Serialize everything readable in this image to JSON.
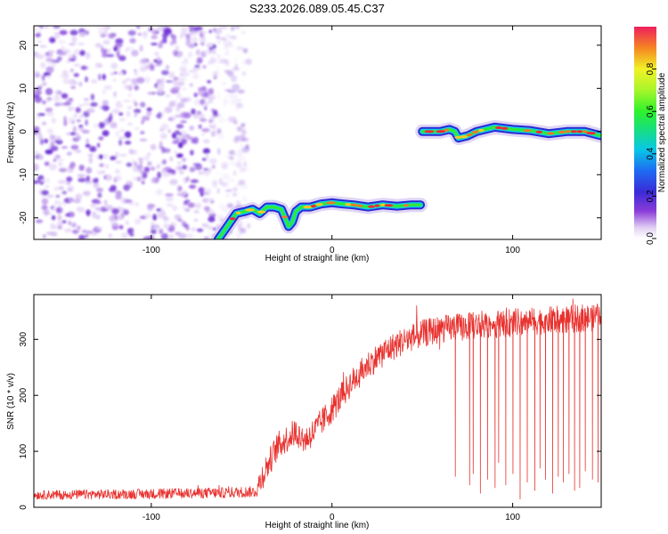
{
  "figure_title": "S233.2026.089.05.45.C37",
  "colors": {
    "axis": "#000000",
    "snr_line": "#e8322f",
    "noise": "#7a3fd9",
    "background": "#ffffff"
  },
  "chart_data": [
    {
      "type": "heatmap",
      "name": "spectrogram",
      "xlabel": "Height of straight line (km)",
      "ylabel": "Frequency (Hz)",
      "xlim": [
        -165,
        149
      ],
      "ylim": [
        -25,
        24.5
      ],
      "xticks": [
        -100,
        0,
        100
      ],
      "yticks": [
        -20,
        -10,
        0,
        10,
        20
      ],
      "noise_region_x": [
        -165,
        -52
      ],
      "ridge": {
        "x": [
          -63,
          -58,
          -53,
          -48,
          -44,
          -40,
          -36,
          -32,
          -28,
          -26,
          -24,
          -22,
          -20,
          -17,
          -12,
          -6,
          0,
          6,
          12,
          20,
          28,
          36,
          44,
          49,
          50,
          55,
          60,
          65,
          68,
          70,
          75,
          80,
          90,
          100,
          110,
          120,
          130,
          140,
          149
        ],
        "y": [
          -25,
          -22,
          -19,
          -18.5,
          -18,
          -19,
          -17.5,
          -17.5,
          -18,
          -20,
          -22,
          -21,
          -18.5,
          -17.5,
          -17.5,
          -16.8,
          -16.5,
          -16.8,
          -17,
          -17.5,
          -17,
          -17.3,
          -17,
          -17,
          0,
          0,
          0,
          0.5,
          0,
          -1.5,
          -1,
          0,
          1,
          0.5,
          0.2,
          -0.5,
          0,
          0,
          -1
        ]
      },
      "colorbar": {
        "label": "Normalized spectral amplitude",
        "range": [
          0,
          1
        ],
        "ticks": [
          "0.0",
          "0.2",
          "0.4",
          "0.6",
          "0.8"
        ],
        "tick_values": [
          0,
          0.2,
          0.4,
          0.6,
          0.8
        ]
      }
    },
    {
      "type": "line",
      "name": "snr",
      "xlabel": "Height of straight line (km)",
      "ylabel": "SNR (10 * v/v)",
      "xlim": [
        -165,
        149
      ],
      "ylim": [
        0,
        380
      ],
      "xticks": [
        -100,
        0,
        100
      ],
      "yticks": [
        0,
        100,
        200,
        300
      ],
      "trend": {
        "x": [
          -165,
          -100,
          -60,
          -42,
          -38,
          -30,
          -20,
          -15,
          -10,
          -5,
          0,
          10,
          20,
          30,
          40,
          50,
          60,
          80,
          100,
          120,
          140,
          149
        ],
        "y": [
          22,
          24,
          26,
          28,
          60,
          110,
          135,
          120,
          135,
          155,
          175,
          220,
          255,
          280,
          298,
          310,
          318,
          325,
          330,
          334,
          338,
          340
        ]
      },
      "noise_amplitude": {
        "x": [
          -165,
          -42,
          -40,
          149
        ],
        "y": [
          8,
          10,
          25,
          25
        ]
      },
      "dropouts": [
        {
          "x": 68,
          "y": 55
        },
        {
          "x": 76,
          "y": 40
        },
        {
          "x": 78,
          "y": 60
        },
        {
          "x": 82,
          "y": 25
        },
        {
          "x": 86,
          "y": 50
        },
        {
          "x": 90,
          "y": 35
        },
        {
          "x": 92,
          "y": 80
        },
        {
          "x": 96,
          "y": 40
        },
        {
          "x": 100,
          "y": 60
        },
        {
          "x": 104,
          "y": 15
        },
        {
          "x": 108,
          "y": 45
        },
        {
          "x": 112,
          "y": 30
        },
        {
          "x": 115,
          "y": 70
        },
        {
          "x": 118,
          "y": 50
        },
        {
          "x": 122,
          "y": 25
        },
        {
          "x": 125,
          "y": 55
        },
        {
          "x": 128,
          "y": 45
        },
        {
          "x": 131,
          "y": 60
        },
        {
          "x": 134,
          "y": 30
        },
        {
          "x": 137,
          "y": 35
        },
        {
          "x": 140,
          "y": 65
        },
        {
          "x": 144,
          "y": 50
        },
        {
          "x": 147,
          "y": 45
        }
      ]
    }
  ]
}
